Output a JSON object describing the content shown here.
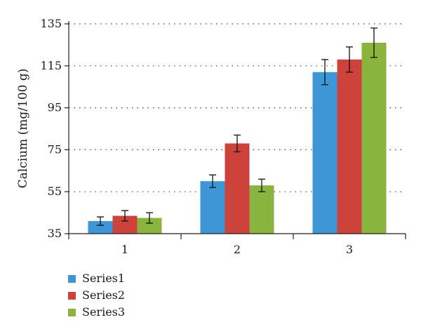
{
  "chart_data": {
    "type": "bar",
    "categories": [
      "1",
      "2",
      "3"
    ],
    "ylabel": "Calcium (mg/100 g)",
    "ylim": [
      35,
      135
    ],
    "yticks": [
      35,
      55,
      75,
      95,
      115,
      135
    ],
    "grid": true,
    "legend_position": "bottom-left",
    "series": [
      {
        "name": "Series1",
        "color": "#3d96d6",
        "values": [
          41,
          60,
          112
        ],
        "errors": [
          2,
          3,
          6
        ]
      },
      {
        "name": "Series2",
        "color": "#cd423b",
        "values": [
          43.5,
          78,
          118
        ],
        "errors": [
          2.5,
          4,
          6
        ]
      },
      {
        "name": "Series3",
        "color": "#8ab53d",
        "values": [
          42.5,
          58,
          126
        ],
        "errors": [
          2.5,
          3,
          7
        ]
      }
    ]
  }
}
